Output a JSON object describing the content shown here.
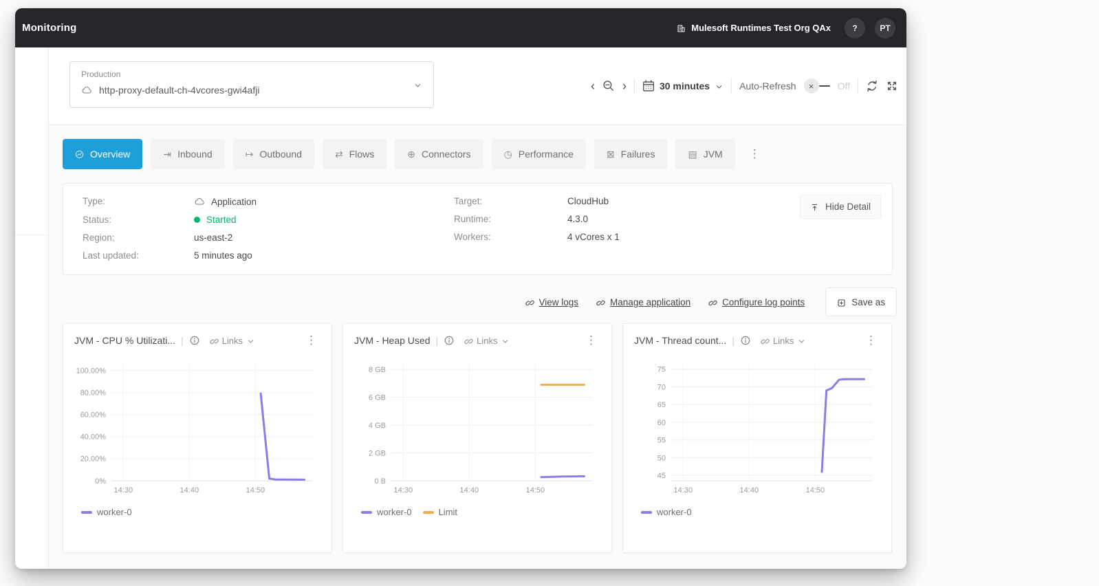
{
  "topbar": {
    "title": "Monitoring",
    "org_name": "Mulesoft Runtimes Test Org QAx",
    "help_label": "?",
    "avatar_initials": "PT"
  },
  "toolbar": {
    "env_label": "Production",
    "app_name": "http-proxy-default-ch-4vcores-gwi4afji",
    "time_range": "30 minutes",
    "auto_refresh_label": "Auto-Refresh",
    "auto_refresh_state": "Off"
  },
  "tabs": [
    {
      "label": "Overview",
      "icon": "overview-icon",
      "active": true
    },
    {
      "label": "Inbound",
      "icon": "inbound-icon",
      "active": false
    },
    {
      "label": "Outbound",
      "icon": "outbound-icon",
      "active": false
    },
    {
      "label": "Flows",
      "icon": "flows-icon",
      "active": false
    },
    {
      "label": "Connectors",
      "icon": "connectors-icon",
      "active": false
    },
    {
      "label": "Performance",
      "icon": "performance-icon",
      "active": false
    },
    {
      "label": "Failures",
      "icon": "failures-icon",
      "active": false
    },
    {
      "label": "JVM",
      "icon": "jvm-icon",
      "active": false
    }
  ],
  "details": {
    "left": [
      {
        "label": "Type:",
        "value": "Application",
        "icon": "cloud-icon"
      },
      {
        "label": "Status:",
        "value": "Started",
        "status": "started"
      },
      {
        "label": "Region:",
        "value": "us-east-2"
      },
      {
        "label": "Last updated:",
        "value": "5 minutes ago"
      }
    ],
    "right": [
      {
        "label": "Target:",
        "value": "CloudHub"
      },
      {
        "label": "Runtime:",
        "value": "4.3.0"
      },
      {
        "label": "Workers:",
        "value": "4 vCores x 1"
      }
    ],
    "hide_detail_label": "Hide Detail"
  },
  "actions": {
    "links": [
      {
        "label": "View logs"
      },
      {
        "label": "Manage application"
      },
      {
        "label": "Configure log points"
      }
    ],
    "save_as_label": "Save as"
  },
  "colors": {
    "accent_blue": "#1f9fd8",
    "series_purple": "#8b7ce6",
    "series_orange": "#efb04c",
    "status_green": "#00b76c",
    "topbar_dark": "#252629"
  },
  "chart_data": [
    {
      "type": "line",
      "title": "JVM - CPU % Utilizati...",
      "links_label": "Links",
      "xlabel": "",
      "ylabel": "",
      "grid": true,
      "legend_position": "bottom",
      "x_ticks": [
        "14:30",
        "14:40",
        "14:50"
      ],
      "x_tick_pos": [
        0,
        10,
        20
      ],
      "xlim": [
        -1.8,
        28.6
      ],
      "ylim": [
        0,
        106
      ],
      "y_ticks": [
        {
          "value": 100,
          "label": "100.00%"
        },
        {
          "value": 80,
          "label": "80.00%"
        },
        {
          "value": 60,
          "label": "60.00%"
        },
        {
          "value": 40,
          "label": "40.00%"
        },
        {
          "value": 20,
          "label": "20.00%"
        },
        {
          "value": 0,
          "label": "0%"
        }
      ],
      "series": [
        {
          "name": "worker-0",
          "color": "#8b7ce6",
          "points": [
            [
              20.8,
              79
            ],
            [
              22.1,
              2
            ],
            [
              23.0,
              1.2
            ],
            [
              27.4,
              1
            ]
          ]
        }
      ]
    },
    {
      "type": "line",
      "title": "JVM - Heap Used",
      "links_label": "Links",
      "xlabel": "",
      "ylabel": "",
      "grid": true,
      "legend_position": "bottom",
      "x_ticks": [
        "14:30",
        "14:40",
        "14:50"
      ],
      "x_tick_pos": [
        0,
        10,
        20
      ],
      "xlim": [
        -1.8,
        28.6
      ],
      "ylim": [
        0,
        8.4
      ],
      "y_ticks": [
        {
          "value": 8,
          "label": "8 GB"
        },
        {
          "value": 6,
          "label": "6 GB"
        },
        {
          "value": 4,
          "label": "4 GB"
        },
        {
          "value": 2,
          "label": "2 GB"
        },
        {
          "value": 0,
          "label": "0 B"
        }
      ],
      "series": [
        {
          "name": "worker-0",
          "color": "#8b7ce6",
          "points": [
            [
              20.9,
              0.26
            ],
            [
              24.0,
              0.3
            ],
            [
              27.4,
              0.32
            ]
          ]
        },
        {
          "name": "Limit",
          "color": "#efb04c",
          "points": [
            [
              20.9,
              6.9
            ],
            [
              27.4,
              6.9
            ]
          ]
        }
      ]
    },
    {
      "type": "line",
      "title": "JVM - Thread count...",
      "links_label": "Links",
      "xlabel": "",
      "ylabel": "",
      "grid": true,
      "legend_position": "bottom",
      "x_ticks": [
        "14:30",
        "14:40",
        "14:50"
      ],
      "x_tick_pos": [
        0,
        10,
        20
      ],
      "xlim": [
        -1.8,
        28.6
      ],
      "ylim": [
        43.5,
        76.5
      ],
      "y_ticks": [
        {
          "value": 75,
          "label": "75"
        },
        {
          "value": 70,
          "label": "70"
        },
        {
          "value": 65,
          "label": "65"
        },
        {
          "value": 60,
          "label": "60"
        },
        {
          "value": 55,
          "label": "55"
        },
        {
          "value": 50,
          "label": "50"
        },
        {
          "value": 45,
          "label": "45"
        }
      ],
      "series": [
        {
          "name": "worker-0",
          "color": "#8b7ce6",
          "points": [
            [
              21.0,
              46
            ],
            [
              21.7,
              69
            ],
            [
              22.5,
              69.6
            ],
            [
              23.6,
              72
            ],
            [
              24.3,
              72.2
            ],
            [
              27.4,
              72.2
            ]
          ]
        }
      ]
    }
  ]
}
